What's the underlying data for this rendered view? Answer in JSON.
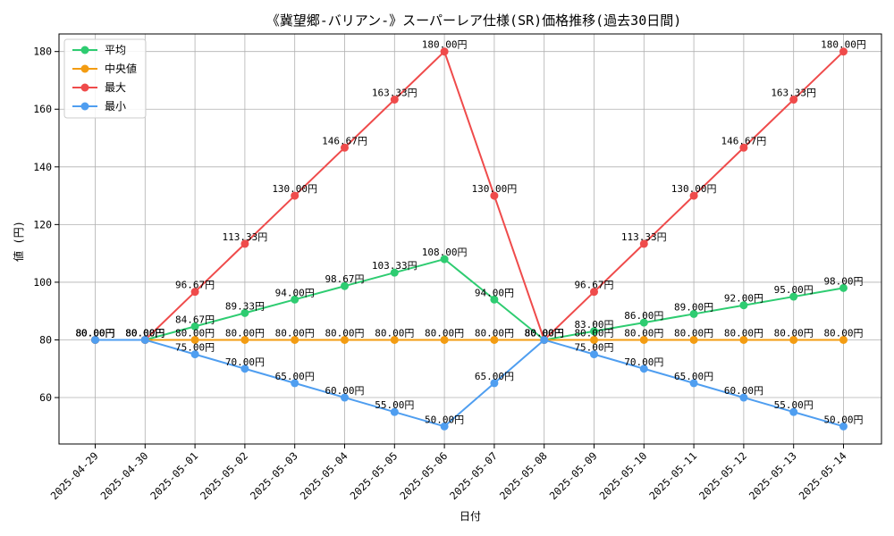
{
  "chart_data": {
    "type": "line",
    "title": "《冀望郷-バリアン-》スーパーレア仕様(SR)価格推移(過去30日間)",
    "xlabel": "日付",
    "ylabel": "値 (円)",
    "x": [
      "2025-04-29",
      "2025-04-30",
      "2025-05-01",
      "2025-05-02",
      "2025-05-03",
      "2025-05-04",
      "2025-05-05",
      "2025-05-06",
      "2025-05-07",
      "2025-05-08",
      "2025-05-09",
      "2025-05-10",
      "2025-05-11",
      "2025-05-12",
      "2025-05-13",
      "2025-05-14"
    ],
    "ylim": [
      43.9,
      186.1
    ],
    "yticks": [
      60,
      80,
      100,
      120,
      140,
      160,
      180
    ],
    "grid": true,
    "legend_position": "top-left",
    "value_suffix": "円",
    "series": [
      {
        "name": "平均",
        "color": "#2ecc71",
        "values": [
          80,
          80,
          84.67,
          89.33,
          94,
          98.67,
          103.33,
          108,
          94,
          80,
          83,
          86,
          89,
          92,
          95,
          98
        ]
      },
      {
        "name": "中央値",
        "color": "#f39c12",
        "values": [
          80,
          80,
          80,
          80,
          80,
          80,
          80,
          80,
          80,
          80,
          80,
          80,
          80,
          80,
          80,
          80
        ]
      },
      {
        "name": "最大",
        "color": "#ef4b4b",
        "values": [
          80,
          80,
          96.67,
          113.33,
          130,
          146.67,
          163.33,
          180,
          130,
          80,
          96.67,
          113.33,
          130,
          146.67,
          163.33,
          180
        ]
      },
      {
        "name": "最小",
        "color": "#4f9ef0",
        "values": [
          80,
          80,
          75,
          70,
          65,
          60,
          55,
          50,
          65,
          80,
          75,
          70,
          65,
          60,
          55,
          50
        ]
      }
    ]
  }
}
